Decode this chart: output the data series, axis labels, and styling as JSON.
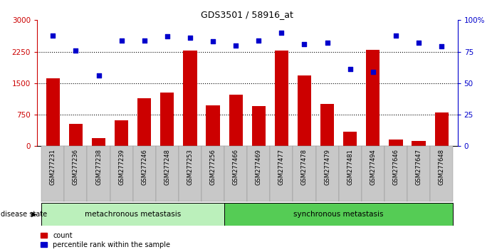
{
  "title": "GDS3501 / 58916_at",
  "samples": [
    "GSM277231",
    "GSM277236",
    "GSM277238",
    "GSM277239",
    "GSM277246",
    "GSM277248",
    "GSM277253",
    "GSM277256",
    "GSM277466",
    "GSM277469",
    "GSM277477",
    "GSM277478",
    "GSM277479",
    "GSM277481",
    "GSM277494",
    "GSM277646",
    "GSM277647",
    "GSM277648"
  ],
  "counts": [
    1620,
    530,
    200,
    620,
    1140,
    1280,
    2270,
    970,
    1230,
    950,
    2270,
    1680,
    1010,
    340,
    2290,
    150,
    120,
    800
  ],
  "percentiles": [
    88,
    76,
    56,
    84,
    84,
    87,
    86,
    83,
    80,
    84,
    90,
    81,
    82,
    61,
    59,
    88,
    82,
    79
  ],
  "group1_label": "metachronous metastasis",
  "group1_count": 8,
  "group2_label": "synchronous metastasis",
  "group2_count": 10,
  "bar_color": "#cc0000",
  "dot_color": "#0000cc",
  "left_yticks": [
    0,
    750,
    1500,
    2250,
    3000
  ],
  "right_yticks": [
    0,
    25,
    50,
    75,
    100
  ],
  "ylim_left": [
    0,
    3000
  ],
  "ylim_right": [
    0,
    100
  ],
  "grid_color": "#000000",
  "bg_color": "#ffffff",
  "label_count": "count",
  "label_percentile": "percentile rank within the sample",
  "disease_state_label": "disease state",
  "group1_color": "#bbf0bb",
  "group2_color": "#55cc55",
  "tick_bg_color": "#c8c8c8"
}
